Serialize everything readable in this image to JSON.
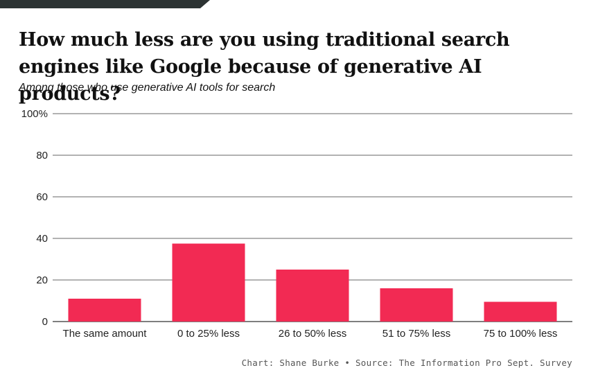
{
  "colors": {
    "bar": "#f22a53",
    "topbar": "#2c3333",
    "grid": "#333333"
  },
  "header": {
    "title": "How much less are you using traditional search engines like Google because of generative AI products?",
    "subtitle": "Among those who use generative AI tools for search"
  },
  "footer": {
    "credit": "Chart: Shane Burke",
    "separator": "•",
    "source": "Source: The Information Pro Sept. Survey"
  },
  "chart_data": {
    "type": "bar",
    "categories": [
      "The same amount",
      "0 to 25% less",
      "26 to 50% less",
      "51 to 75% less",
      "75 to 100% less"
    ],
    "values": [
      11,
      37.5,
      25,
      16,
      9.5
    ],
    "ylim": [
      0,
      100
    ],
    "yticks": [
      0,
      20,
      40,
      60,
      80,
      100
    ],
    "ytick_labels": [
      "0",
      "20",
      "40",
      "60",
      "80",
      "100%"
    ],
    "grid": true,
    "xlabel": "",
    "ylabel": ""
  }
}
